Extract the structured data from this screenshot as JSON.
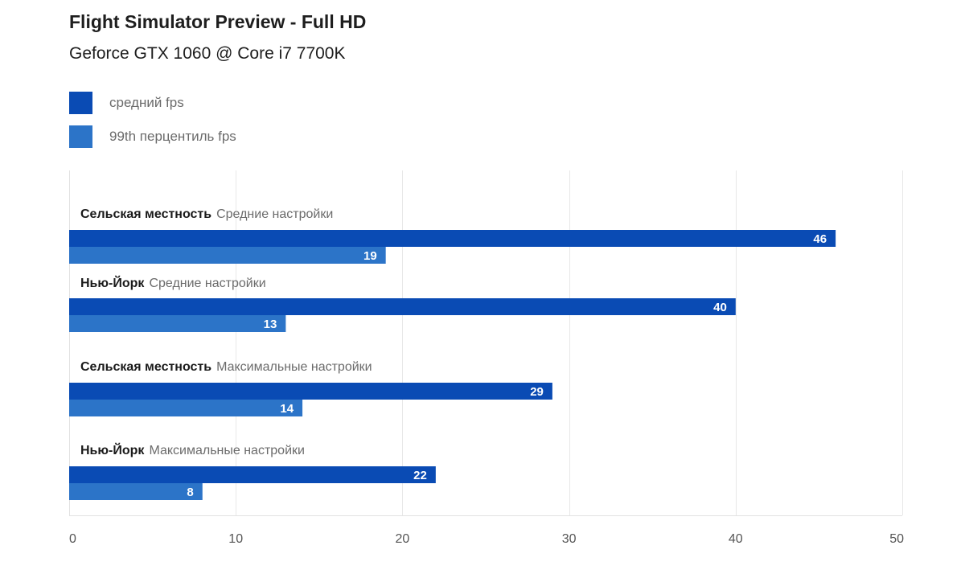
{
  "chart_data": {
    "type": "bar",
    "orientation": "horizontal",
    "title": "Flight Simulator Preview - Full HD",
    "subtitle": "Geforce GTX 1060 @ Core i7 7700K",
    "categories": [
      {
        "name": "Сельская местность",
        "setting": "Средние настройки"
      },
      {
        "name": "Нью-Йорк",
        "setting": "Средние настройки"
      },
      {
        "name": "Сельская местность",
        "setting": "Максимальные настройки"
      },
      {
        "name": "Нью-Йорк",
        "setting": "Максимальные настройки"
      }
    ],
    "series": [
      {
        "name": "средний fps",
        "color": "#0a4bb4",
        "values": [
          46,
          40,
          29,
          22
        ]
      },
      {
        "name": "99th перцентиль fps",
        "color": "#2c74c8",
        "values": [
          19,
          13,
          14,
          8
        ]
      }
    ],
    "xlim": [
      0,
      50
    ],
    "xticks": [
      "0",
      "10",
      "20",
      "30",
      "40",
      "50"
    ],
    "grid": true,
    "legend_position": "top-left"
  }
}
